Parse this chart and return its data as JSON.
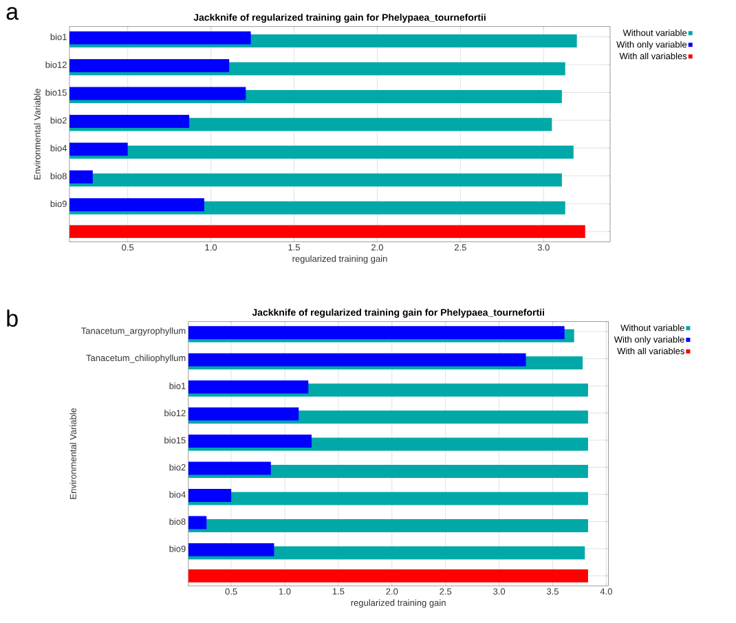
{
  "chart_data": [
    {
      "type": "bar",
      "orientation": "horizontal",
      "title": "Jackknife of regularized training gain for Phelypaea_tournefortii",
      "xlabel": "regularized training gain",
      "ylabel": "Environmental Variable",
      "annotations": [
        "a"
      ],
      "categories": [
        "bio1",
        "bio12",
        "bio15",
        "bio2",
        "bio4",
        "bio8",
        "bio9",
        null
      ],
      "series": [
        {
          "name": "Without variable",
          "color": "#00a8a8",
          "values": [
            3.2,
            3.13,
            3.11,
            3.05,
            3.18,
            3.11,
            3.13,
            null
          ]
        },
        {
          "name": "With only variable",
          "color": "#0000ff",
          "values": [
            1.24,
            1.11,
            1.21,
            0.87,
            0.5,
            0.29,
            0.96,
            null
          ]
        },
        {
          "name": "With all variables",
          "color": "#ff0000",
          "values": [
            null,
            null,
            null,
            null,
            null,
            null,
            null,
            3.25
          ]
        }
      ],
      "xlim": [
        0.15,
        3.4
      ],
      "xticks": [
        0.5,
        {
          "value": 1.0,
          "label": "1.0"
        },
        1.5,
        {
          "value": 2.0,
          "label": "2.0"
        },
        2.5,
        {
          "value": 3.0,
          "label": "3.0"
        }
      ],
      "grid": true,
      "legend": "right"
    },
    {
      "type": "bar",
      "orientation": "horizontal",
      "title": "Jackknife of regularized training gain for Phelypaea_tournefortii",
      "xlabel": "regularized training gain",
      "ylabel": "Environmental Variable",
      "annotations": [
        "b"
      ],
      "categories": [
        "Tanacetum_argyrophyllum",
        "Tanacetum_chiliophyllum",
        "bio1",
        "bio12",
        "bio15",
        "bio2",
        "bio4",
        "bio8",
        "bio9",
        null
      ],
      "series": [
        {
          "name": "Without variable",
          "color": "#00a8a8",
          "values": [
            3.7,
            3.78,
            3.83,
            3.83,
            3.83,
            3.83,
            3.83,
            3.83,
            3.8,
            null
          ]
        },
        {
          "name": "With only variable",
          "color": "#0000ff",
          "values": [
            3.61,
            3.25,
            1.22,
            1.13,
            1.25,
            0.87,
            0.5,
            0.27,
            0.9,
            null
          ]
        },
        {
          "name": "With all variables",
          "color": "#ff0000",
          "values": [
            null,
            null,
            null,
            null,
            null,
            null,
            null,
            null,
            null,
            3.83
          ]
        }
      ],
      "xlim": [
        0.1,
        4.02
      ],
      "xticks": [
        0.5,
        {
          "value": 1.0,
          "label": "1.0"
        },
        1.5,
        {
          "value": 2.0,
          "label": "2.0"
        },
        2.5,
        {
          "value": 3.0,
          "label": "3.0"
        },
        3.5,
        {
          "value": 4.0,
          "label": "4.0"
        }
      ],
      "grid": true,
      "legend": "right"
    }
  ]
}
